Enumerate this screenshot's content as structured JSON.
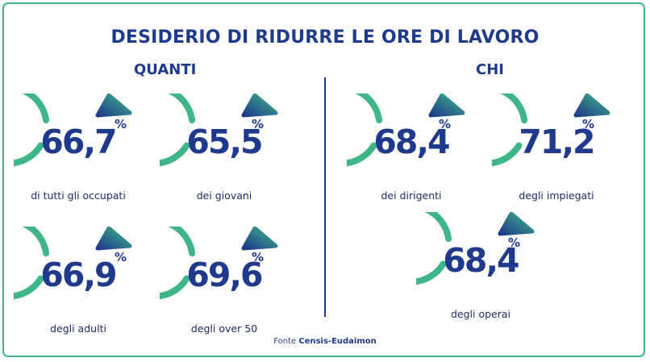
{
  "title": "DESIDERIO DI RIDURRE LE ORE DI LAVORO",
  "sections": {
    "left": "QUANTI",
    "right": "CHI"
  },
  "percent_symbol": "%",
  "colors": {
    "ring": "#3fb58a",
    "text": "#1e3a8a",
    "arrow_start": "#1e3a8a",
    "arrow_end": "#3fb58a"
  },
  "stats": [
    {
      "value": "66,7",
      "label": "di tutti gli occupati"
    },
    {
      "value": "65,5",
      "label": "dei giovani"
    },
    {
      "value": "66,9",
      "label": "degli adulti"
    },
    {
      "value": "69,6",
      "label": "degli over 50"
    },
    {
      "value": "68,4",
      "label": "dei dirigenti"
    },
    {
      "value": "71,2",
      "label": "degli impiegati"
    },
    {
      "value": "68,4",
      "label": "degli operai"
    }
  ],
  "source": {
    "prefix": "Fonte",
    "name": "Censis-Eudaimon"
  }
}
